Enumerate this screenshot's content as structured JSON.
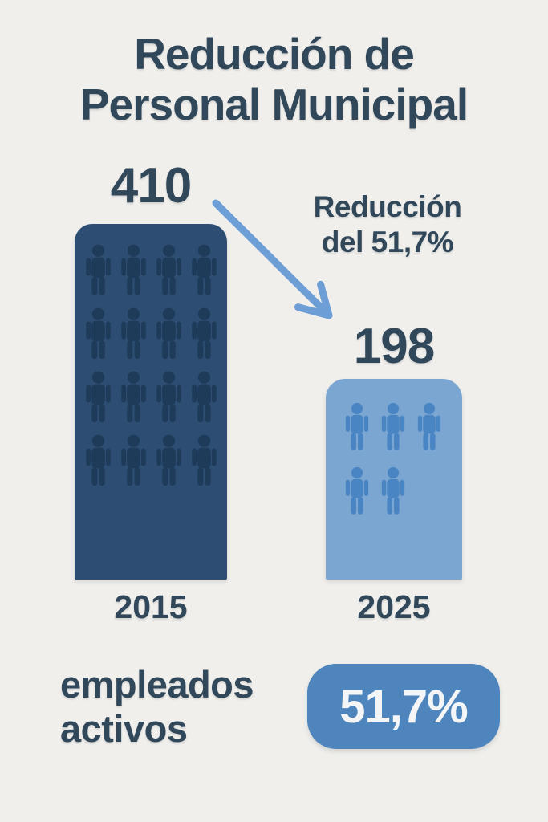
{
  "title": {
    "line1": "Reducción de",
    "line2": "Personal Municipal",
    "full": "Reducción de Personal Municipal"
  },
  "bars": [
    {
      "year": "2015",
      "value": "410",
      "people_icons_shown": 16
    },
    {
      "year": "2025",
      "value": "198",
      "people_icons_shown": 5
    }
  ],
  "annotation": {
    "line1": "Reducción",
    "line2": "del 51,7%"
  },
  "footer": {
    "label_line1": "empleados",
    "label_line2": "activos",
    "badge": "51,7%"
  },
  "icon_rows": {
    "bar2015": [
      4,
      4,
      4,
      4
    ],
    "bar2025": [
      3,
      2
    ]
  },
  "colors": {
    "bg": "#f0efec",
    "ink": "#31475a",
    "bar_dark": "#2d4e72",
    "icon_dark": "#1f3b5a",
    "bar_light": "#7ba6d2",
    "icon_light": "#4a85c3",
    "arrow": "#6d9ed6",
    "badge": "#4d85bc",
    "badge_text": "#f4f5f6"
  },
  "chart_data": {
    "type": "bar",
    "categories": [
      "2015",
      "2025"
    ],
    "values": [
      410,
      198
    ],
    "title": "Reducción de Personal Municipal",
    "xlabel": "",
    "ylabel": "",
    "ylim": [
      0,
      410
    ],
    "grid": false,
    "legend": false,
    "bar_colors": [
      "#2d4e72",
      "#7ba6d2"
    ],
    "pictogram_icon_counts": [
      16,
      5
    ],
    "annotations": [
      "Reducción del 51,7%",
      "empleados activos",
      "51,7%"
    ]
  }
}
